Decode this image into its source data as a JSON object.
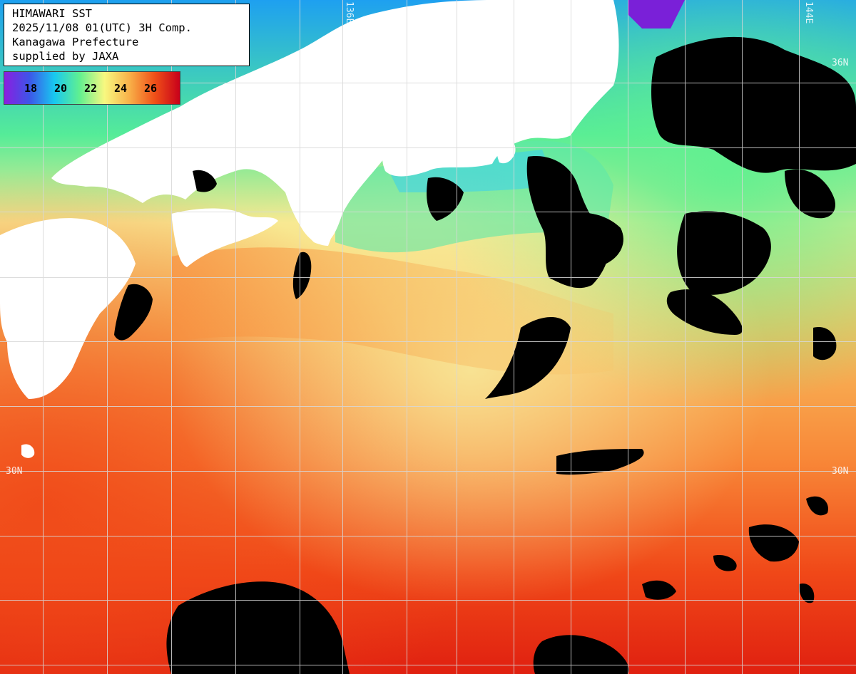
{
  "header": {
    "line1": "HIMAWARI SST",
    "line2": "2025/11/08 01(UTC) 3H Comp.",
    "line3": "Kanagawa Prefecture",
    "line4": "supplied by JAXA"
  },
  "legend": {
    "labels": [
      "18",
      "20",
      "22",
      "24",
      "26"
    ],
    "colors": [
      "#8b1ee0",
      "#3d55e8",
      "#18c8f0",
      "#60f090",
      "#f8f880",
      "#f8b048",
      "#f05018",
      "#c8001a"
    ]
  },
  "coords": {
    "lon_136": "136E",
    "lon_144": "144E",
    "lat_36": "36N",
    "lat_30_left": "30N",
    "lat_30_right": "30N"
  },
  "palette": {
    "land": "#ffffff",
    "cloud": "#000000",
    "grid": "#d8d8d8"
  }
}
